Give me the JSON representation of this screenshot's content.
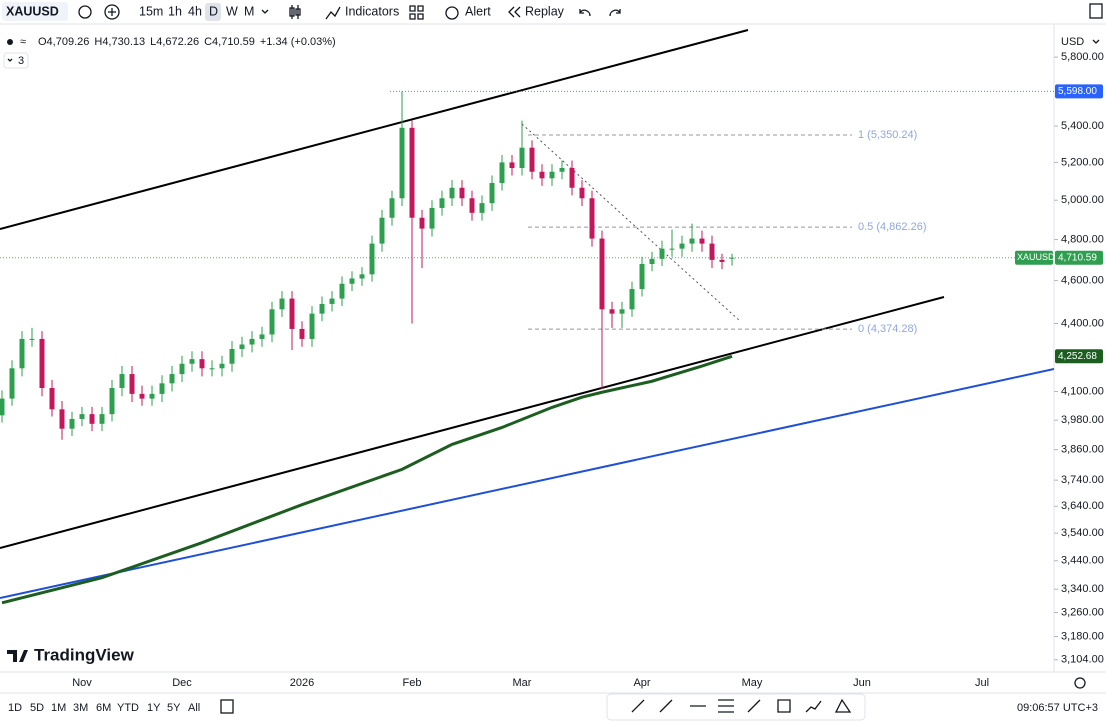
{
  "toolbar": {
    "symbol": "XAUUSD",
    "intervals": [
      "15m",
      "1h",
      "4h",
      "D",
      "W",
      "M"
    ],
    "indicators": "Indicators",
    "alert": "Alert",
    "replay": "Replay"
  },
  "legend": {
    "ohlc": [
      "O4,709.26",
      "H4,730.13",
      "L4,672.26",
      "C4,710.59",
      "+1.34 (+0.03%)"
    ],
    "studies": "3"
  },
  "currency": "USD",
  "watermark": "TradingView",
  "ranges": [
    "1D",
    "5D",
    "1M",
    "3M",
    "6M",
    "YTD",
    "1Y",
    "5Y",
    "All"
  ],
  "clock": "09:06:57 UTC+3",
  "chart_data": {
    "type": "candlestick",
    "log_scale": true,
    "grid": false,
    "up_color": "#2e9e4f",
    "down_color": "#c2185b",
    "categories": [
      null,
      null,
      null,
      null,
      null,
      null,
      null,
      null,
      "Nov",
      null,
      null,
      null,
      null,
      null,
      null,
      null,
      null,
      null,
      "Dec",
      null,
      null,
      null,
      null,
      null,
      null,
      null,
      null,
      null,
      null,
      null,
      "2026",
      null,
      null,
      null,
      null,
      null,
      null,
      null,
      null,
      null,
      null,
      "Feb",
      null,
      null,
      null,
      null,
      null,
      null,
      null,
      null,
      null,
      null,
      "Mar",
      null,
      null,
      null,
      null,
      null,
      null,
      null,
      null,
      null,
      null,
      null,
      "Apr",
      null,
      null,
      null,
      null,
      null,
      null,
      null,
      null,
      null,
      null,
      "May",
      null,
      null,
      null,
      null,
      null,
      null,
      null,
      null,
      null,
      null,
      "Jun",
      null,
      null,
      null,
      null,
      null,
      null,
      null,
      null,
      null,
      null,
      null,
      "Jul",
      null,
      null,
      null,
      null,
      null,
      null,
      null,
      null,
      null
    ],
    "open": [
      4000,
      4070,
      4200,
      4330,
      4330,
      4115,
      4025,
      3945,
      3985,
      4005,
      3965,
      4005,
      4115,
      4175,
      4090,
      4070,
      4090,
      4135,
      4175,
      4220,
      4240,
      4200,
      4200,
      4220,
      4285,
      4305,
      4330,
      4350,
      4465,
      4515,
      4375,
      4330,
      4445,
      4490,
      4515,
      4585,
      4610,
      4630,
      4780,
      4910,
      5010,
      5390,
      4910,
      4855,
      4960,
      5010,
      5065,
      5010,
      4935,
      4985,
      5090,
      5200,
      5170,
      5280,
      5150,
      5115,
      5150,
      5170,
      5065,
      5010,
      4805,
      4465,
      4445,
      4465,
      4560,
      4680,
      4705,
      4755,
      4755,
      4780,
      4805,
      4780,
      4700,
      4709.26,
      null,
      null,
      null,
      null,
      null,
      null,
      null,
      null,
      null,
      null,
      null,
      null,
      null,
      null,
      null,
      null,
      null,
      null,
      null,
      null,
      null,
      null,
      null,
      null,
      null,
      null,
      null,
      null,
      null,
      null,
      null,
      null,
      null,
      null
    ],
    "high": [
      4105,
      4235,
      4365,
      4380,
      4365,
      4150,
      4060,
      4015,
      4035,
      4035,
      4035,
      4150,
      4210,
      4210,
      4125,
      4125,
      4170,
      4210,
      4255,
      4275,
      4275,
      4235,
      4255,
      4320,
      4340,
      4365,
      4385,
      4500,
      4550,
      4550,
      4410,
      4480,
      4525,
      4550,
      4620,
      4645,
      4665,
      4820,
      4950,
      5050,
      5598,
      5430,
      4950,
      5000,
      5050,
      5105,
      5105,
      5050,
      5025,
      5130,
      5240,
      5240,
      5430,
      5320,
      5190,
      5190,
      5210,
      5210,
      5105,
      5050,
      4845,
      4500,
      4500,
      4595,
      4715,
      4740,
      4795,
      4850,
      4820,
      4880,
      4845,
      4820,
      4730,
      4730.13,
      null,
      null,
      null,
      null,
      null,
      null,
      null,
      null,
      null,
      null,
      null,
      null,
      null,
      null,
      null,
      null,
      null,
      null,
      null,
      null,
      null,
      null,
      null,
      null,
      null,
      null,
      null,
      null,
      null,
      null,
      null,
      null,
      null,
      null
    ],
    "low": [
      3970,
      4040,
      4165,
      4295,
      4080,
      3995,
      3900,
      3915,
      3955,
      3935,
      3935,
      3975,
      4080,
      4055,
      4040,
      4040,
      4055,
      4100,
      4140,
      4185,
      4165,
      4165,
      4165,
      4185,
      4250,
      4270,
      4295,
      4315,
      4430,
      4280,
      4295,
      4295,
      4410,
      4455,
      4480,
      4550,
      4575,
      4595,
      4740,
      4870,
      4970,
      4400,
      4660,
      4815,
      4920,
      4970,
      4970,
      4895,
      4895,
      4945,
      5050,
      5130,
      5130,
      5110,
      5075,
      5075,
      5110,
      5025,
      4970,
      4765,
      4110,
      4380,
      4380,
      4430,
      4525,
      4645,
      4670,
      4715,
      4715,
      4740,
      4740,
      4660,
      4655,
      4672.26,
      null,
      null,
      null,
      null,
      null,
      null,
      null,
      null,
      null,
      null,
      null,
      null,
      null,
      null,
      null,
      null,
      null,
      null,
      null,
      null,
      null,
      null,
      null,
      null,
      null,
      null,
      null,
      null,
      null,
      null,
      null,
      null,
      null,
      null
    ],
    "close": [
      4070,
      4200,
      4330,
      4330,
      4115,
      4025,
      3945,
      3985,
      4005,
      3965,
      4005,
      4115,
      4175,
      4090,
      4070,
      4090,
      4135,
      4175,
      4220,
      4240,
      4200,
      4200,
      4220,
      4285,
      4305,
      4330,
      4350,
      4465,
      4515,
      4375,
      4330,
      4445,
      4490,
      4515,
      4585,
      4610,
      4630,
      4780,
      4910,
      5010,
      5390,
      4910,
      4855,
      4960,
      5010,
      5065,
      5010,
      4935,
      4985,
      5090,
      5200,
      5170,
      5280,
      5150,
      5115,
      5150,
      5170,
      5065,
      5010,
      4805,
      4465,
      4445,
      4465,
      4560,
      4680,
      4705,
      4755,
      4755,
      4780,
      4805,
      4780,
      4700,
      4690,
      4710.59,
      null,
      null,
      null,
      null,
      null,
      null,
      null,
      null,
      null,
      null,
      null,
      null,
      null,
      null,
      null,
      null,
      null,
      null,
      null,
      null,
      null,
      null,
      null,
      null,
      null,
      null,
      null,
      null,
      null,
      null,
      null,
      null,
      null,
      null
    ],
    "ma": {
      "color": "#1b5e20",
      "x": [
        0,
        10,
        20,
        30,
        40,
        45,
        50,
        55,
        58,
        60,
        65,
        70,
        73
      ],
      "values": [
        3293,
        3380,
        3505,
        3646,
        3782,
        3881,
        3950,
        4033,
        4076,
        4097,
        4144,
        4210,
        4252.68
      ]
    },
    "fib": [
      {
        "label": "1 (5,350.24)",
        "value": 5350.24
      },
      {
        "label": "0.5 (4,862.26)",
        "value": 4862.26
      },
      {
        "label": "0 (4,374.28)",
        "value": 4374.28
      }
    ],
    "price_labels": [
      {
        "label": "5,598.00",
        "value": 5598,
        "color": "#2962ff"
      },
      {
        "label": "4,710.59",
        "value": 4710.59,
        "color": "#2e9e4f",
        "symbol": "XAUUSD"
      },
      {
        "label": "4,252.68",
        "value": 4252.68,
        "color": "#1b5e20"
      }
    ],
    "ylim": [
      3065,
      5978
    ],
    "yticks": [
      {
        "value": 5800,
        "label": "5,800.00"
      },
      {
        "value": 5400,
        "label": "5,400.00"
      },
      {
        "value": 5200,
        "label": "5,200.00"
      },
      {
        "value": 5000,
        "label": "5,000.00"
      },
      {
        "value": 4800,
        "label": "4,800.00"
      },
      {
        "value": 4600,
        "label": "4,600.00"
      },
      {
        "value": 4400,
        "label": "4,400.00"
      },
      {
        "value": 4100,
        "label": "4,100.00"
      },
      {
        "value": 3980,
        "label": "3,980.00"
      },
      {
        "value": 3860,
        "label": "3,860.00"
      },
      {
        "value": 3740,
        "label": "3,740.00"
      },
      {
        "value": 3640,
        "label": "3,640.00"
      },
      {
        "value": 3540,
        "label": "3,540.00"
      },
      {
        "value": 3440,
        "label": "3,440.00"
      },
      {
        "value": 3340,
        "label": "3,340.00"
      },
      {
        "value": 3260,
        "label": "3,260.00"
      },
      {
        "value": 3180,
        "label": "3,180.00"
      },
      {
        "value": 3104,
        "label": "3,104.00"
      }
    ]
  }
}
